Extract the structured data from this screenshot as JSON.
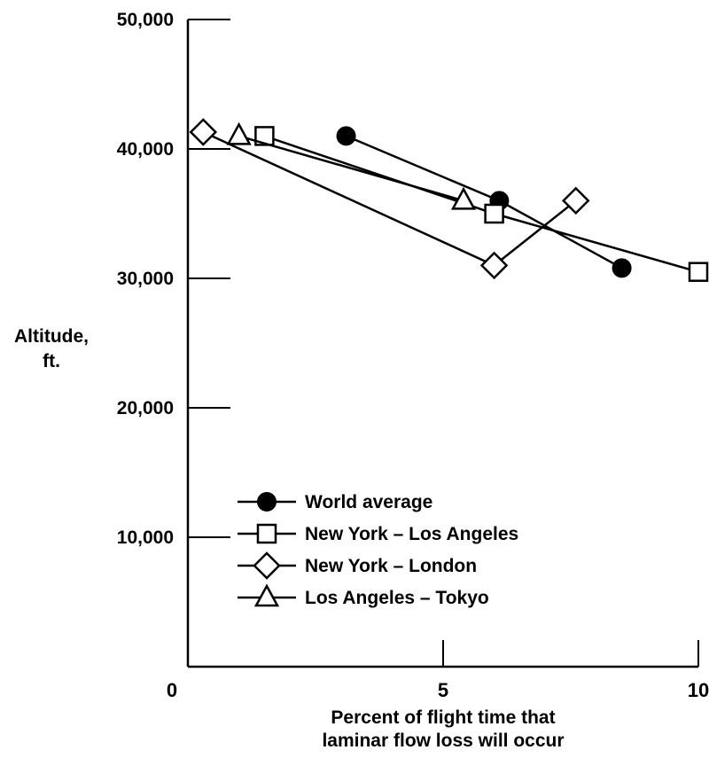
{
  "chart_data": {
    "type": "line",
    "title": "",
    "ylabel_lines": [
      "Altitude,",
      "ft."
    ],
    "xlabel_lines": [
      "Percent of flight time that",
      "laminar flow loss will occur"
    ],
    "xlim": [
      0,
      10
    ],
    "ylim": [
      0,
      50000
    ],
    "x_ticks": [
      {
        "value": 0,
        "label": "0"
      },
      {
        "value": 5,
        "label": "5"
      },
      {
        "value": 10,
        "label": "10"
      }
    ],
    "y_ticks": [
      {
        "value": 10000,
        "label": "10,000"
      },
      {
        "value": 20000,
        "label": "20,000"
      },
      {
        "value": 30000,
        "label": "30,000"
      },
      {
        "value": 40000,
        "label": "40,000"
      },
      {
        "value": 50000,
        "label": "50,000"
      }
    ],
    "grid": false,
    "legend_position": "lower-left",
    "series": [
      {
        "name": "World average",
        "marker": "filled-circle",
        "x": [
          3.1,
          6.1,
          8.5
        ],
        "y": [
          41000,
          36000,
          30800
        ]
      },
      {
        "name": "New York – Los Angeles",
        "marker": "open-square",
        "x": [
          1.5,
          6.0,
          10.0
        ],
        "y": [
          41000,
          35000,
          30500
        ]
      },
      {
        "name": "New York – London",
        "marker": "open-diamond",
        "x": [
          0.3,
          6.0,
          7.6
        ],
        "y": [
          41300,
          31000,
          36000
        ]
      },
      {
        "name": "Los Angeles – Tokyo",
        "marker": "open-triangle",
        "x": [
          1.0,
          5.4
        ],
        "y": [
          41000,
          36000
        ]
      }
    ],
    "colors": {
      "line": "#000000",
      "background": "#ffffff"
    }
  }
}
